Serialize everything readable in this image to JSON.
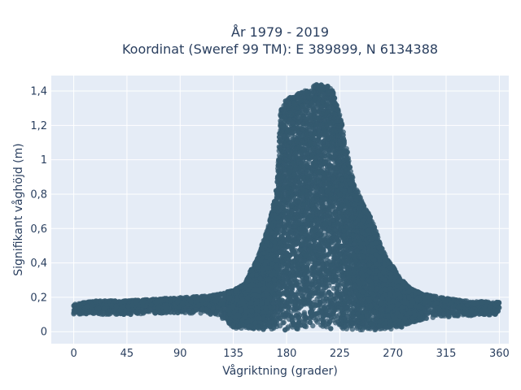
{
  "chart_data": {
    "type": "scatter",
    "title_line1": "År 1979 - 2019",
    "title_line2": "Koordinat (Sweref 99 TM): E 389899, N 6134388",
    "xlabel": "Vågriktning (grader)",
    "ylabel": "Signifikant våghöjd (m)",
    "xlim": [
      -19,
      368
    ],
    "ylim": [
      -0.07,
      1.49
    ],
    "x_ticks": [
      0,
      45,
      90,
      135,
      180,
      225,
      270,
      315,
      360
    ],
    "y_ticks": [
      0,
      0.2,
      0.4,
      0.6,
      0.8,
      1,
      1.2,
      1.4
    ],
    "y_tick_labels": [
      "0",
      "0,2",
      "0,4",
      "0,6",
      "0,8",
      "1",
      "1,2",
      "1,4"
    ],
    "grid": true,
    "legend": "none",
    "colors": {
      "marker": "#34596f",
      "plot_bg": "#e5ecf6",
      "grid": "#ffffff",
      "text": "#2a3f5f"
    },
    "series": [
      {
        "upper_envelope": {
          "x": [
            0,
            20,
            45,
            70,
            95,
            115,
            135,
            145,
            150,
            155,
            160,
            165,
            170,
            172,
            175,
            180,
            185,
            195,
            205,
            215,
            220,
            225,
            230,
            235,
            240,
            245,
            250,
            255,
            260,
            265,
            270,
            275,
            285,
            295,
            310,
            330,
            360
          ],
          "y": [
            0.16,
            0.18,
            0.18,
            0.19,
            0.2,
            0.21,
            0.24,
            0.28,
            0.36,
            0.42,
            0.52,
            0.62,
            0.78,
            0.85,
            1.3,
            1.35,
            1.37,
            1.4,
            1.44,
            1.43,
            1.4,
            1.28,
            1.1,
            0.92,
            0.82,
            0.74,
            0.68,
            0.6,
            0.5,
            0.42,
            0.38,
            0.32,
            0.25,
            0.22,
            0.2,
            0.18,
            0.17
          ]
        },
        "lower_envelope": {
          "x": [
            0,
            45,
            90,
            120,
            130,
            135,
            145,
            160,
            180,
            220,
            260,
            275,
            285,
            300,
            330,
            360
          ],
          "y": [
            0.1,
            0.1,
            0.11,
            0.1,
            0.06,
            0.02,
            0.02,
            0.01,
            0.01,
            0.01,
            0.01,
            0.02,
            0.05,
            0.08,
            0.09,
            0.1
          ]
        },
        "point_count": 16000
      }
    ]
  }
}
